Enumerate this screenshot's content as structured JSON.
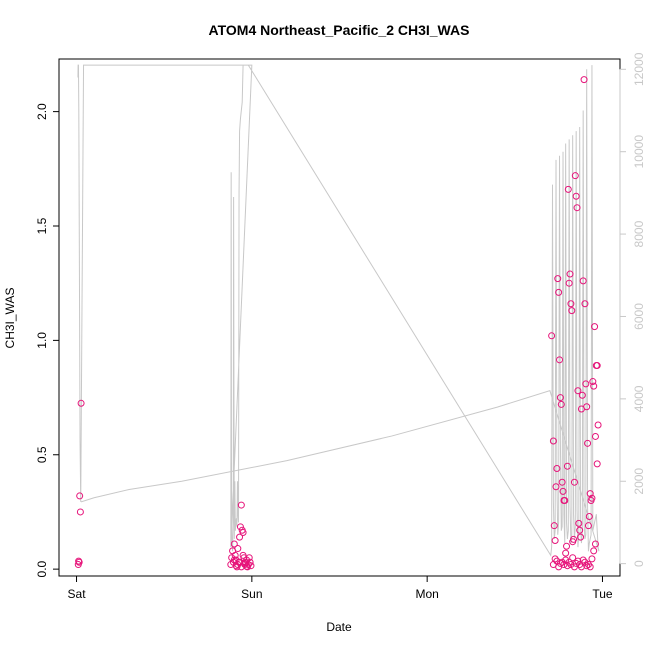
{
  "chart_data": {
    "type": "scatter",
    "title": "ATOM4 Northeast_Pacific_2 CH3I_WAS",
    "xlabel": "Date",
    "ylabel": "CH3I_WAS",
    "x_ticks": [
      "Sat",
      "Sun",
      "Mon",
      "Tue"
    ],
    "x_unit": "days since Sat 00:00",
    "xlim": [
      -0.1,
      3.1
    ],
    "ylim": [
      -0.03,
      2.23
    ],
    "y_ticks": [
      0.0,
      0.5,
      1.0,
      1.5,
      2.0
    ],
    "y_tick_labels": [
      "0.0",
      "0.5",
      "1.0",
      "1.5",
      "2.0"
    ],
    "y2_ticks": [
      0,
      2000,
      4000,
      6000,
      8000,
      10000,
      12000
    ],
    "y2_tick_labels": [
      "0",
      "2000",
      "4000",
      "6000",
      "8000",
      "10000",
      "12000"
    ],
    "y2lim": [
      -300,
      12250
    ],
    "grid": false,
    "colors": {
      "points": "#e6147a",
      "line": "#c8c8c8",
      "axis": "#000000",
      "right_axis": "#c8c8c8"
    },
    "series": [
      {
        "type": "points",
        "axis": "left",
        "x": [
          0.01,
          0.012,
          0.015,
          0.018,
          0.022,
          0.026,
          0.88,
          0.885,
          0.89,
          0.895,
          0.9,
          0.905,
          0.91,
          0.915,
          0.92,
          0.925,
          0.93,
          0.935,
          0.94,
          0.945,
          0.95,
          0.955,
          0.96,
          0.965,
          0.97,
          0.975,
          0.98,
          0.985,
          0.99,
          0.995,
          0.9,
          0.91,
          0.92,
          0.93,
          0.94,
          0.95,
          0.96,
          0.97,
          2.71,
          2.72,
          2.725,
          2.73,
          2.735,
          2.74,
          2.745,
          2.75,
          2.755,
          2.76,
          2.765,
          2.77,
          2.775,
          2.78,
          2.785,
          2.79,
          2.795,
          2.8,
          2.805,
          2.81,
          2.815,
          2.82,
          2.825,
          2.83,
          2.835,
          2.84,
          2.845,
          2.85,
          2.855,
          2.86,
          2.865,
          2.87,
          2.875,
          2.88,
          2.885,
          2.89,
          2.895,
          2.9,
          2.905,
          2.91,
          2.915,
          2.92,
          2.925,
          2.93,
          2.935,
          2.94,
          2.945,
          2.95,
          2.955,
          2.96,
          2.965,
          2.97,
          2.975,
          2.72,
          2.73,
          2.74,
          2.75,
          2.76,
          2.77,
          2.78,
          2.79,
          2.8,
          2.81,
          2.82,
          2.83,
          2.84,
          2.85,
          2.86,
          2.87,
          2.88,
          2.89,
          2.9,
          2.91,
          2.92,
          2.93,
          2.94,
          2.95,
          2.96,
          2.97
        ],
        "y": [
          0.02,
          0.035,
          0.03,
          0.32,
          0.25,
          0.725,
          0.02,
          0.05,
          0.08,
          0.03,
          0.11,
          0.06,
          0.04,
          0.01,
          0.09,
          0.03,
          0.14,
          0.185,
          0.28,
          0.17,
          0.16,
          0.05,
          0.02,
          0.03,
          0.04,
          0.01,
          0.02,
          0.05,
          0.03,
          0.015,
          0.04,
          0.015,
          0.02,
          0.03,
          0.01,
          0.06,
          0.025,
          0.012,
          1.02,
          0.56,
          0.19,
          0.125,
          0.36,
          0.44,
          1.27,
          1.21,
          0.915,
          0.75,
          0.72,
          0.38,
          0.34,
          0.3,
          0.3,
          0.07,
          0.1,
          0.45,
          1.66,
          1.25,
          1.29,
          1.16,
          1.13,
          0.12,
          0.13,
          0.38,
          1.72,
          1.63,
          1.58,
          0.78,
          0.2,
          0.17,
          0.14,
          0.7,
          0.76,
          1.26,
          2.14,
          1.16,
          0.81,
          0.71,
          0.55,
          0.19,
          0.23,
          0.33,
          0.3,
          0.31,
          0.82,
          0.8,
          1.06,
          0.58,
          0.89,
          0.89,
          0.63,
          0.02,
          0.045,
          0.035,
          0.01,
          0.025,
          0.03,
          0.02,
          0.04,
          0.015,
          0.03,
          0.02,
          0.05,
          0.01,
          0.025,
          0.035,
          0.02,
          0.01,
          0.04,
          0.03,
          0.015,
          0.02,
          0.01,
          0.045,
          0.08,
          0.11,
          0.46
        ]
      },
      {
        "type": "line",
        "axis": "right",
        "x": [
          0.008,
          0.009,
          0.011,
          0.013,
          0.017,
          0.02,
          0.024,
          0.04,
          0.1,
          0.2,
          0.4,
          0.6,
          0.8,
          0.9,
          0.95,
          0.96,
          0.97,
          0.975,
          0.98,
          0.985,
          0.99,
          0.995,
          1.0,
          0.88,
          0.882,
          0.884,
          0.886,
          0.888,
          0.89,
          0.892,
          0.894,
          0.896,
          0.898,
          0.9,
          0.903,
          0.906,
          0.909,
          0.912,
          0.915,
          0.918,
          0.921,
          0.924,
          0.927,
          0.93,
          0.935,
          0.94,
          0.945,
          0.95,
          0.955,
          0.96,
          0.965,
          0.97,
          0.975,
          0.98,
          2.705,
          2.71,
          2.715,
          2.72,
          2.725,
          2.73,
          2.735,
          2.74,
          2.745,
          2.75,
          2.755,
          2.76,
          2.765,
          2.77,
          2.775,
          2.78,
          2.785,
          2.79,
          2.795,
          2.8,
          2.805,
          2.81,
          2.815,
          2.82,
          2.825,
          2.83,
          2.835,
          2.84,
          2.845,
          2.85,
          2.855,
          2.86,
          2.865,
          2.87,
          2.875,
          2.88,
          2.885,
          2.89,
          2.895,
          2.9,
          2.905,
          2.91,
          2.915,
          2.92,
          2.925,
          2.93,
          2.935,
          2.94,
          2.945,
          2.95,
          2.955,
          2.96,
          2.965,
          2.97,
          2.975,
          2.98,
          2.7,
          2.4,
          1.8,
          1.2,
          0.6,
          0.3,
          0.1,
          0.026
        ],
        "y": [
          11800,
          12100,
          12100,
          11000,
          6500,
          3000,
          1500,
          12100,
          12100,
          12100,
          12100,
          12100,
          12100,
          12100,
          12100,
          12100,
          12100,
          12100,
          12100,
          12100,
          12100,
          12100,
          12100,
          400,
          9500,
          2000,
          500,
          600,
          300,
          700,
          1000,
          8900,
          4000,
          600,
          2000,
          800,
          1000,
          1100,
          900,
          2000,
          1200,
          1000,
          9000,
          10500,
          10800,
          11000,
          11200,
          12100,
          12100,
          12100,
          12100,
          12100,
          12100,
          12100,
          200,
          400,
          9200,
          1500,
          600,
          800,
          9800,
          2000,
          700,
          1000,
          9900,
          3000,
          800,
          900,
          10000,
          1200,
          500,
          10200,
          1000,
          600,
          800,
          10300,
          1400,
          500,
          700,
          10400,
          1200,
          600,
          900,
          10500,
          1300,
          400,
          700,
          10600,
          900,
          500,
          800,
          11000,
          1000,
          600,
          700,
          12000,
          1400,
          300,
          500,
          600,
          700,
          12100,
          800,
          900,
          1000,
          1100,
          1200,
          800,
          400,
          300,
          4200,
          3800,
          3100,
          2500,
          2000,
          1800,
          1600,
          1500
        ]
      }
    ]
  }
}
